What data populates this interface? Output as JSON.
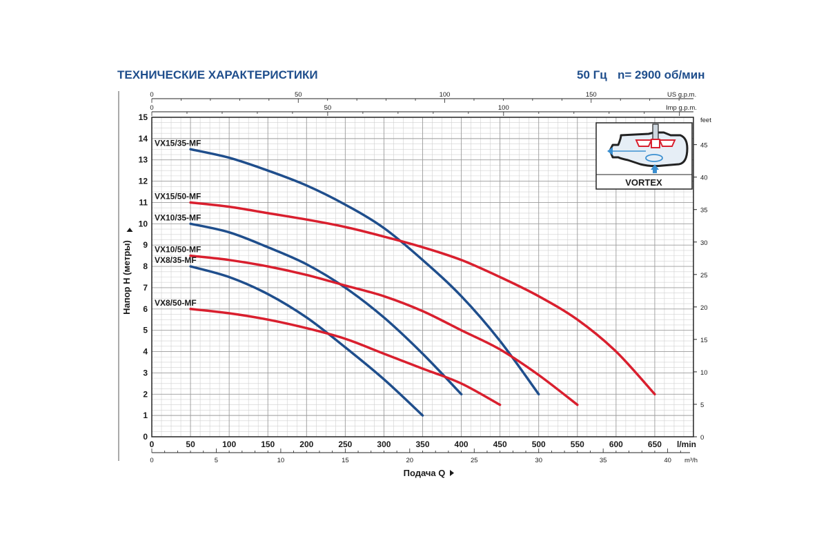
{
  "header": {
    "title": "ТЕХНИЧЕСКИЕ ХАРАКТЕРИСТИКИ",
    "frequency": "50 Гц",
    "speed": "n= 2900 об/мин"
  },
  "inset": {
    "label": "VORTEX"
  },
  "chart_data": {
    "type": "line",
    "ylabel": "Напор H (метры)",
    "xlabel": "Подача Q",
    "ylim": [
      0,
      15
    ],
    "xlim": [
      0,
      700
    ],
    "grid": true,
    "axes": {
      "bottom_primary": {
        "unit": "l/min",
        "ticks": [
          0,
          50,
          100,
          150,
          200,
          250,
          300,
          350,
          400,
          450,
          500,
          550,
          600,
          650
        ]
      },
      "bottom_secondary": {
        "unit": "m³/h",
        "ticks": [
          0,
          5,
          10,
          15,
          20,
          25,
          30,
          35,
          40
        ]
      },
      "top_us": {
        "unit": "US g.p.m.",
        "ticks": [
          0,
          50,
          100,
          150
        ]
      },
      "top_imp": {
        "unit": "Imp g.p.m.",
        "ticks": [
          0,
          50,
          100
        ]
      },
      "left": {
        "ticks": [
          0,
          1,
          2,
          3,
          4,
          5,
          6,
          7,
          8,
          9,
          10,
          11,
          12,
          13,
          14,
          15
        ]
      },
      "right": {
        "unit": "feet",
        "ticks": [
          0,
          5,
          10,
          15,
          20,
          25,
          30,
          35,
          40,
          45
        ]
      }
    },
    "series": [
      {
        "name": "VX15/35-MF",
        "color": "#1f4e8c",
        "x": [
          50,
          100,
          150,
          200,
          250,
          300,
          350,
          400,
          450,
          500
        ],
        "y": [
          13.5,
          13.1,
          12.5,
          11.8,
          10.9,
          9.8,
          8.3,
          6.6,
          4.5,
          2.0
        ]
      },
      {
        "name": "VX15/50-MF",
        "color": "#d91f2e",
        "x": [
          50,
          100,
          150,
          200,
          250,
          300,
          350,
          400,
          450,
          500,
          550,
          600,
          650
        ],
        "y": [
          11.0,
          10.8,
          10.5,
          10.2,
          9.85,
          9.4,
          8.9,
          8.3,
          7.5,
          6.6,
          5.5,
          4.0,
          2.0
        ]
      },
      {
        "name": "VX10/35-MF",
        "color": "#1f4e8c",
        "x": [
          50,
          100,
          150,
          200,
          250,
          300,
          350,
          400
        ],
        "y": [
          10.0,
          9.6,
          8.9,
          8.1,
          7.0,
          5.6,
          3.9,
          2.0
        ]
      },
      {
        "name": "VX10/50-MF",
        "color": "#d91f2e",
        "x": [
          50,
          100,
          150,
          200,
          250,
          300,
          350,
          400,
          450,
          500,
          550
        ],
        "y": [
          8.5,
          8.3,
          8.0,
          7.6,
          7.1,
          6.6,
          5.9,
          5.0,
          4.1,
          2.9,
          1.5
        ]
      },
      {
        "name": "VX8/35-MF",
        "color": "#1f4e8c",
        "x": [
          50,
          100,
          150,
          200,
          250,
          300,
          350
        ],
        "y": [
          8.0,
          7.5,
          6.7,
          5.6,
          4.2,
          2.7,
          1.0
        ]
      },
      {
        "name": "VX8/50-MF",
        "color": "#d91f2e",
        "x": [
          50,
          100,
          150,
          200,
          250,
          300,
          350,
          400,
          450
        ],
        "y": [
          6.0,
          5.8,
          5.5,
          5.1,
          4.6,
          3.9,
          3.2,
          2.5,
          1.5
        ]
      }
    ]
  }
}
